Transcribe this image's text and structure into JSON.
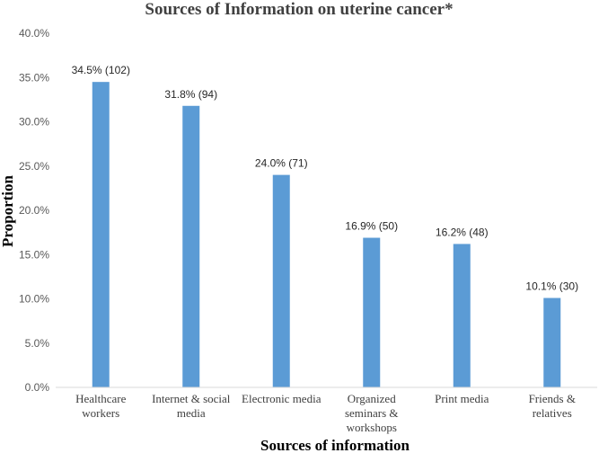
{
  "chart_data": {
    "type": "bar",
    "title": "Sources of Information on uterine cancer*",
    "xlabel": "Sources of information",
    "ylabel": "Proportion",
    "ylim": [
      0,
      40
    ],
    "yticks": [
      "0.0%",
      "5.0%",
      "10.0%",
      "15.0%",
      "20.0%",
      "25.0%",
      "30.0%",
      "35.0%",
      "40.0%"
    ],
    "categories": [
      [
        "Healthcare",
        "workers"
      ],
      [
        "Internet & social",
        "media"
      ],
      [
        "Electronic media"
      ],
      [
        "Organized",
        "seminars &",
        "workshops"
      ],
      [
        "Print media"
      ],
      [
        "Friends &",
        "relatives"
      ]
    ],
    "values": [
      34.5,
      31.8,
      24.0,
      16.9,
      16.2,
      10.1
    ],
    "data_labels": [
      "34.5% (102)",
      "31.8% (94)",
      "24.0% (71)",
      "16.9% (50)",
      "16.2% (48)",
      "10.1% (30)"
    ],
    "grid": false,
    "bar_color": "#5b9bd5"
  }
}
